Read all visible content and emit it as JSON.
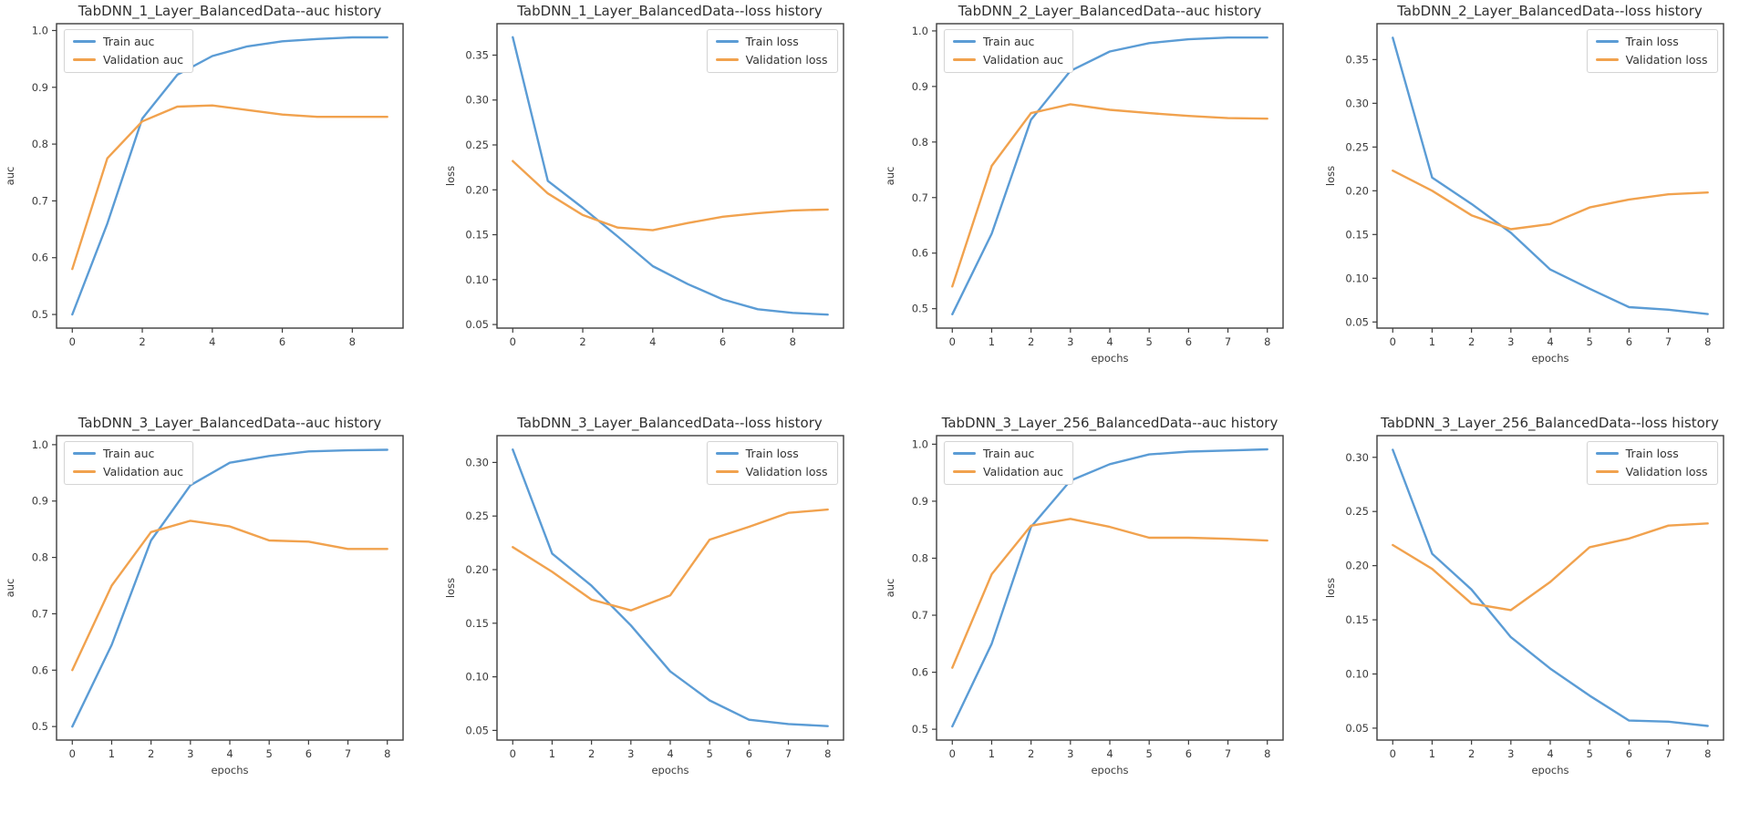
{
  "page": {
    "background": "#ffffff",
    "description_colors": {
      "axis": "#3d3d3d",
      "tick_text": "#3a3a3a",
      "train_line": "#5b9cd5",
      "validation_line": "#f1a24e"
    }
  },
  "chart_data": [
    {
      "type": "line",
      "title": "TabDNN_1_Layer_BalancedData--auc history",
      "xlabel": "",
      "ylabel": "auc",
      "x": [
        0,
        1,
        2,
        3,
        4,
        5,
        6,
        7,
        8,
        9
      ],
      "xticks": [
        0,
        2,
        4,
        6,
        8
      ],
      "yticks": [
        0.5,
        0.6,
        0.7,
        0.8,
        0.9,
        1.0
      ],
      "ytick_decimals": 1,
      "xlim": [
        -0.45,
        9.45
      ],
      "ylim": [
        0.476,
        1.012
      ],
      "grid": false,
      "legend_position": "upper-left",
      "series": [
        {
          "name": "Train auc",
          "color": "#5b9cd5",
          "values": [
            0.5,
            0.66,
            0.845,
            0.922,
            0.955,
            0.972,
            0.981,
            0.985,
            0.988,
            0.988
          ]
        },
        {
          "name": "Validation auc",
          "color": "#f1a24e",
          "values": [
            0.58,
            0.775,
            0.84,
            0.866,
            0.868,
            0.86,
            0.852,
            0.848,
            0.848,
            0.848
          ]
        }
      ]
    },
    {
      "type": "line",
      "title": "TabDNN_1_Layer_BalancedData--loss history",
      "xlabel": "",
      "ylabel": "loss",
      "x": [
        0,
        1,
        2,
        3,
        4,
        5,
        6,
        7,
        8,
        9
      ],
      "xticks": [
        0,
        2,
        4,
        6,
        8
      ],
      "yticks": [
        0.05,
        0.1,
        0.15,
        0.2,
        0.25,
        0.3,
        0.35
      ],
      "ytick_decimals": 2,
      "xlim": [
        -0.45,
        9.45
      ],
      "ylim": [
        0.046,
        0.385
      ],
      "grid": false,
      "legend_position": "upper-right",
      "series": [
        {
          "name": "Train loss",
          "color": "#5b9cd5",
          "values": [
            0.37,
            0.21,
            0.18,
            0.148,
            0.115,
            0.095,
            0.078,
            0.067,
            0.063,
            0.061
          ]
        },
        {
          "name": "Validation loss",
          "color": "#f1a24e",
          "values": [
            0.232,
            0.196,
            0.172,
            0.158,
            0.155,
            0.163,
            0.17,
            0.174,
            0.177,
            0.178
          ]
        }
      ]
    },
    {
      "type": "line",
      "title": "TabDNN_2_Layer_BalancedData--auc history",
      "xlabel": "epochs",
      "ylabel": "auc",
      "x": [
        0,
        1,
        2,
        3,
        4,
        5,
        6,
        7,
        8
      ],
      "xticks": [
        0,
        1,
        2,
        3,
        4,
        5,
        6,
        7,
        8
      ],
      "yticks": [
        0.5,
        0.6,
        0.7,
        0.8,
        0.9,
        1.0
      ],
      "ytick_decimals": 1,
      "xlim": [
        -0.4,
        8.4
      ],
      "ylim": [
        0.465,
        1.013
      ],
      "grid": false,
      "legend_position": "upper-left",
      "series": [
        {
          "name": "Train auc",
          "color": "#5b9cd5",
          "values": [
            0.49,
            0.635,
            0.84,
            0.928,
            0.963,
            0.978,
            0.985,
            0.988,
            0.988
          ]
        },
        {
          "name": "Validation auc",
          "color": "#f1a24e",
          "values": [
            0.54,
            0.757,
            0.852,
            0.868,
            0.858,
            0.852,
            0.847,
            0.843,
            0.842
          ]
        }
      ]
    },
    {
      "type": "line",
      "title": "TabDNN_2_Layer_BalancedData--loss history",
      "xlabel": "epochs",
      "ylabel": "loss",
      "x": [
        0,
        1,
        2,
        3,
        4,
        5,
        6,
        7,
        8
      ],
      "xticks": [
        0,
        1,
        2,
        3,
        4,
        5,
        6,
        7,
        8
      ],
      "yticks": [
        0.05,
        0.1,
        0.15,
        0.2,
        0.25,
        0.3,
        0.35
      ],
      "ytick_decimals": 2,
      "xlim": [
        -0.4,
        8.4
      ],
      "ylim": [
        0.043,
        0.391
      ],
      "grid": false,
      "legend_position": "upper-right",
      "series": [
        {
          "name": "Train loss",
          "color": "#5b9cd5",
          "values": [
            0.375,
            0.215,
            0.185,
            0.152,
            0.11,
            0.088,
            0.067,
            0.064,
            0.059
          ]
        },
        {
          "name": "Validation loss",
          "color": "#f1a24e",
          "values": [
            0.223,
            0.2,
            0.172,
            0.156,
            0.162,
            0.181,
            0.19,
            0.196,
            0.198
          ]
        }
      ]
    },
    {
      "type": "line",
      "title": "TabDNN_3_Layer_BalancedData--auc history",
      "xlabel": "epochs",
      "ylabel": "auc",
      "x": [
        0,
        1,
        2,
        3,
        4,
        5,
        6,
        7,
        8
      ],
      "xticks": [
        0,
        1,
        2,
        3,
        4,
        5,
        6,
        7,
        8
      ],
      "yticks": [
        0.5,
        0.6,
        0.7,
        0.8,
        0.9,
        1.0
      ],
      "ytick_decimals": 1,
      "xlim": [
        -0.4,
        8.4
      ],
      "ylim": [
        0.476,
        1.016
      ],
      "grid": false,
      "legend_position": "upper-left",
      "series": [
        {
          "name": "Train auc",
          "color": "#5b9cd5",
          "values": [
            0.5,
            0.645,
            0.83,
            0.928,
            0.968,
            0.98,
            0.988,
            0.99,
            0.991
          ]
        },
        {
          "name": "Validation auc",
          "color": "#f1a24e",
          "values": [
            0.6,
            0.75,
            0.845,
            0.865,
            0.855,
            0.83,
            0.828,
            0.815,
            0.815
          ]
        }
      ]
    },
    {
      "type": "line",
      "title": "TabDNN_3_Layer_BalancedData--loss history",
      "xlabel": "epochs",
      "ylabel": "loss",
      "x": [
        0,
        1,
        2,
        3,
        4,
        5,
        6,
        7,
        8
      ],
      "xticks": [
        0,
        1,
        2,
        3,
        4,
        5,
        6,
        7,
        8
      ],
      "yticks": [
        0.05,
        0.1,
        0.15,
        0.2,
        0.25,
        0.3
      ],
      "ytick_decimals": 2,
      "xlim": [
        -0.4,
        8.4
      ],
      "ylim": [
        0.041,
        0.325
      ],
      "grid": false,
      "legend_position": "upper-right",
      "series": [
        {
          "name": "Train loss",
          "color": "#5b9cd5",
          "values": [
            0.312,
            0.215,
            0.185,
            0.148,
            0.105,
            0.078,
            0.06,
            0.056,
            0.054
          ]
        },
        {
          "name": "Validation loss",
          "color": "#f1a24e",
          "values": [
            0.221,
            0.198,
            0.172,
            0.162,
            0.176,
            0.228,
            0.24,
            0.253,
            0.256
          ]
        }
      ]
    },
    {
      "type": "line",
      "title": "TabDNN_3_Layer_256_BalancedData--auc history",
      "xlabel": "epochs",
      "ylabel": "auc",
      "x": [
        0,
        1,
        2,
        3,
        4,
        5,
        6,
        7,
        8
      ],
      "xticks": [
        0,
        1,
        2,
        3,
        4,
        5,
        6,
        7,
        8
      ],
      "yticks": [
        0.5,
        0.6,
        0.7,
        0.8,
        0.9,
        1.0
      ],
      "ytick_decimals": 1,
      "xlim": [
        -0.4,
        8.4
      ],
      "ylim": [
        0.481,
        1.015
      ],
      "grid": false,
      "legend_position": "upper-left",
      "series": [
        {
          "name": "Train auc",
          "color": "#5b9cd5",
          "values": [
            0.505,
            0.65,
            0.855,
            0.936,
            0.965,
            0.982,
            0.987,
            0.989,
            0.991
          ]
        },
        {
          "name": "Validation auc",
          "color": "#f1a24e",
          "values": [
            0.608,
            0.772,
            0.857,
            0.869,
            0.855,
            0.836,
            0.836,
            0.834,
            0.831
          ]
        }
      ]
    },
    {
      "type": "line",
      "title": "TabDNN_3_Layer_256_BalancedData--loss history",
      "xlabel": "epochs",
      "ylabel": "loss",
      "x": [
        0,
        1,
        2,
        3,
        4,
        5,
        6,
        7,
        8
      ],
      "xticks": [
        0,
        1,
        2,
        3,
        4,
        5,
        6,
        7,
        8
      ],
      "yticks": [
        0.05,
        0.1,
        0.15,
        0.2,
        0.25,
        0.3
      ],
      "ytick_decimals": 2,
      "xlim": [
        -0.4,
        8.4
      ],
      "ylim": [
        0.039,
        0.32
      ],
      "grid": false,
      "legend_position": "upper-right",
      "series": [
        {
          "name": "Train loss",
          "color": "#5b9cd5",
          "values": [
            0.307,
            0.211,
            0.178,
            0.134,
            0.105,
            0.08,
            0.057,
            0.056,
            0.052
          ]
        },
        {
          "name": "Validation loss",
          "color": "#f1a24e",
          "values": [
            0.219,
            0.197,
            0.165,
            0.159,
            0.185,
            0.217,
            0.225,
            0.237,
            0.239
          ]
        }
      ]
    }
  ]
}
